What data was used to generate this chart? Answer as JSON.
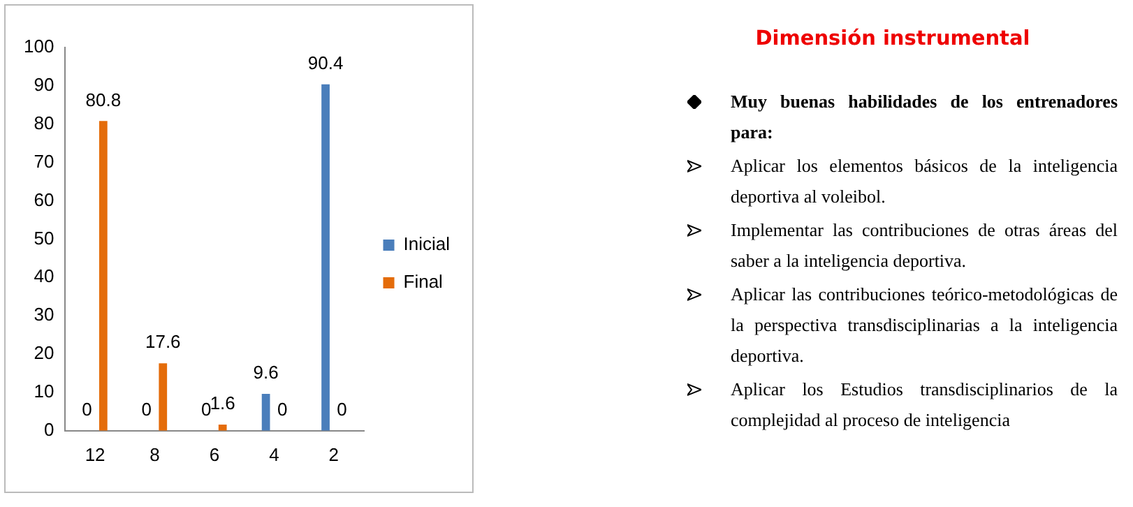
{
  "chart_data": [
    {
      "type": "bar",
      "categories": [
        "12",
        "8",
        "6",
        "4",
        "2"
      ],
      "series": [
        {
          "name": "Inicial",
          "color": "#4a7ebb",
          "values": [
            0,
            0,
            0,
            9.6,
            90.4
          ]
        },
        {
          "name": "Final",
          "color": "#e46c0a",
          "values": [
            80.8,
            17.6,
            1.6,
            0,
            0
          ]
        }
      ],
      "ylim": [
        0,
        100
      ],
      "yticks": [
        0,
        10,
        20,
        30,
        40,
        50,
        60,
        70,
        80,
        90,
        100
      ],
      "grid": false,
      "legend": "right",
      "data_labels": true
    },
    {
      "type": "other",
      "title": "Dimensión instrumental",
      "annotations": [
        "Muy buenas habilidades de los entrenadores para:",
        "Aplicar los elementos básicos de la inteligencia deportiva al voleibol.",
        "Implementar las contribuciones de otras áreas del saber a la inteligencia deportiva.",
        "Aplicar las contribuciones teórico-metodológicas de la perspectiva transdisciplinarias a la inteligencia deportiva.",
        "Aplicar los Estudios transdisciplinarios de la complejidad al proceso de inteligencia"
      ]
    }
  ]
}
